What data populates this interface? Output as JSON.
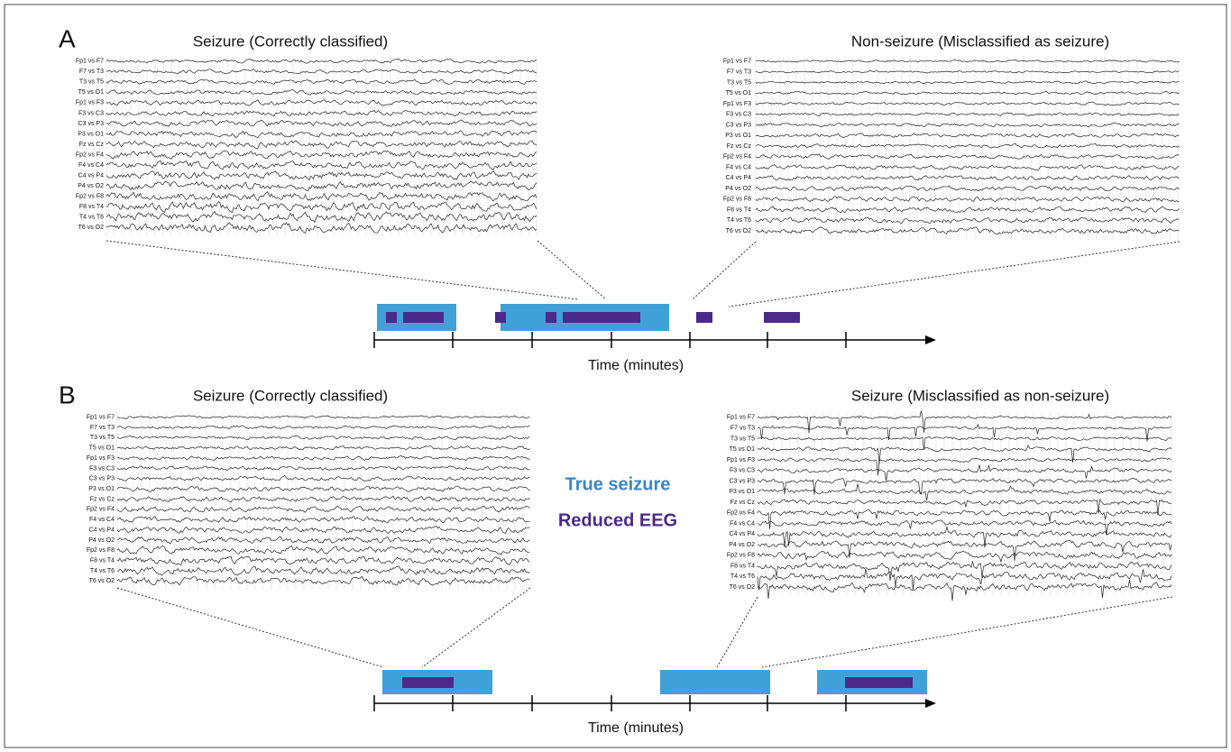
{
  "panels": [
    {
      "label": "A",
      "left_title": "Seizure (Correctly classified)",
      "right_title": "Non-seizure (Misclassified as seizure)",
      "axis_label": "Time (minutes)"
    },
    {
      "label": "B",
      "left_title": "Seizure (Correctly classified)",
      "right_title": "Seizure (Misclassified as non-seizure)",
      "axis_label": "Time (minutes)"
    }
  ],
  "channels": [
    "Fp1 vs F7",
    "F7 vs T3",
    "T3 vs T5",
    "T5 vs O1",
    "Fp1 vs F3",
    "F3 vs C3",
    "C3 vs P3",
    "P3 vs O1",
    "Fz vs Cz",
    "Fp2 vs F4",
    "F4 vs C4",
    "C4 vs P4",
    "P4 vs O2",
    "Fp2 vs F8",
    "F8 vs T4",
    "T4 vs T6",
    "T6 vs O2"
  ],
  "legend": {
    "true_seizure": "True seizure",
    "reduced_eeg": "Reduced EEG"
  }
}
